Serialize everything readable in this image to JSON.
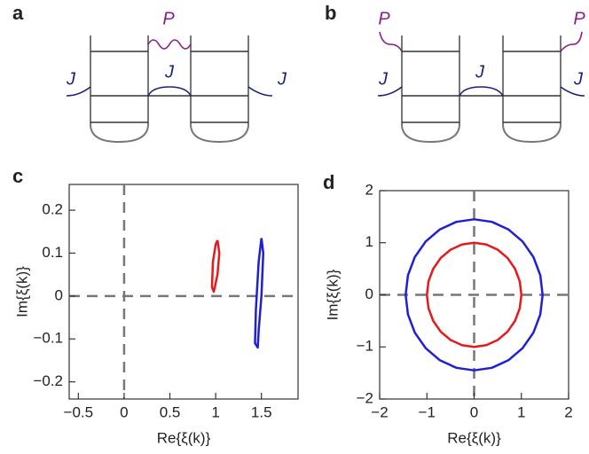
{
  "diagrams": [
    {
      "panel_label": "a",
      "labels": [
        "P",
        "J",
        "J",
        "J"
      ]
    },
    {
      "panel_label": "b",
      "labels": [
        "P",
        "P",
        "J",
        "J",
        "J"
      ]
    }
  ],
  "chart_data": [
    {
      "type": "line",
      "panel_label": "c",
      "x_label": "Re{ξ(k)}",
      "y_label": "Im{ξ(k)}",
      "xlim": [
        -0.6,
        1.9
      ],
      "ylim": [
        -0.24,
        0.26
      ],
      "xticks": [
        {
          "value": -0.5,
          "label": "−0.5"
        },
        0,
        0.5,
        1,
        1.5
      ],
      "yticks": [
        {
          "value": -0.2,
          "label": "−0.2"
        },
        {
          "value": -0.1,
          "label": "−0.1"
        },
        0,
        0.1,
        0.2
      ],
      "series": [
        {
          "color": "#e41a1c",
          "x": [
            1.02,
            1.04,
            1.02,
            0.98,
            0.96,
            0.97,
            1.0,
            1.02
          ],
          "values": [
            0.13,
            0.1,
            0.05,
            0.01,
            0.02,
            0.08,
            0.12,
            0.13
          ]
        },
        {
          "color": "#1f1fd6",
          "x": [
            1.5,
            1.52,
            1.5,
            1.47,
            1.46,
            1.43,
            1.44,
            1.47,
            1.5
          ],
          "values": [
            0.135,
            0.1,
            0,
            -0.08,
            -0.12,
            -0.11,
            -0.03,
            0.08,
            0.135
          ]
        }
      ]
    },
    {
      "type": "line",
      "panel_label": "d",
      "x_label": "Re{ξ(k)}",
      "y_label": "Im{ξ(k)}",
      "xlim": [
        -2,
        2
      ],
      "ylim": [
        -2,
        2
      ],
      "xticks": [
        {
          "value": -2,
          "label": "−2"
        },
        {
          "value": -1,
          "label": "−1"
        },
        0,
        1,
        2
      ],
      "yticks": [
        {
          "value": -2,
          "label": "−2"
        },
        {
          "value": -1,
          "label": "−1"
        },
        0,
        1,
        2
      ],
      "series": [
        {
          "color": "#e41a1c",
          "x": [
            1,
            0.966,
            0.866,
            0.707,
            0.5,
            0.259,
            0,
            -0.259,
            -0.5,
            -0.707,
            -0.866,
            -0.966,
            -1,
            -0.966,
            -0.866,
            -0.707,
            -0.5,
            -0.259,
            0,
            0.259,
            0.5,
            0.707,
            0.866,
            0.966,
            1
          ],
          "values": [
            0,
            0.259,
            0.5,
            0.707,
            0.866,
            0.966,
            1,
            0.966,
            0.866,
            0.707,
            0.5,
            0.259,
            0,
            -0.259,
            -0.5,
            -0.707,
            -0.866,
            -0.966,
            -1,
            -0.966,
            -0.866,
            -0.707,
            -0.5,
            -0.259,
            0
          ]
        },
        {
          "color": "#1f1fd6",
          "x": [
            1.45,
            1.401,
            1.256,
            1.025,
            0.725,
            0.375,
            0,
            -0.375,
            -0.725,
            -1.025,
            -1.256,
            -1.401,
            -1.45,
            -1.401,
            -1.256,
            -1.025,
            -0.725,
            -0.375,
            0,
            0.375,
            0.725,
            1.025,
            1.256,
            1.401,
            1.45
          ],
          "values": [
            0,
            0.375,
            0.725,
            1.025,
            1.256,
            1.401,
            1.45,
            1.401,
            1.256,
            1.025,
            0.725,
            0.375,
            0,
            -0.375,
            -0.725,
            -1.025,
            -1.256,
            -1.401,
            -1.45,
            -1.401,
            -1.256,
            -1.025,
            -0.725,
            -0.375,
            0
          ]
        }
      ]
    }
  ]
}
